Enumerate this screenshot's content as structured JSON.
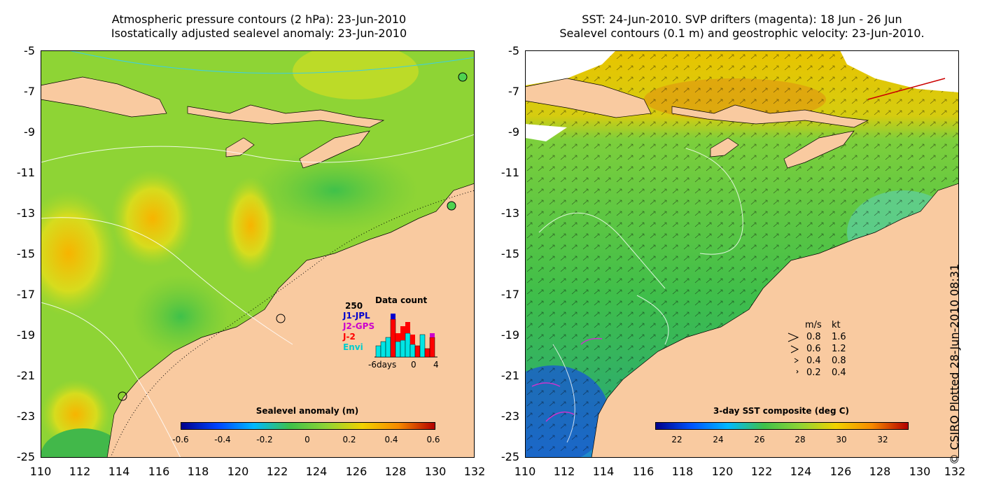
{
  "left_panel": {
    "title_line1": "Atmospheric pressure contours (2 hPa): 23-Jun-2010",
    "title_line2": "Isostatically adjusted sealevel anomaly: 23-Jun-2010",
    "colorbar": {
      "label": "Sealevel anomaly (m)",
      "ticks": [
        "-0.6",
        "-0.4",
        "-0.2",
        "0",
        "0.2",
        "0.4",
        "0.6"
      ]
    },
    "inset": {
      "title": "Data count",
      "max_label": "250",
      "series": [
        {
          "name": "J1-JPL",
          "color": "#0000cc"
        },
        {
          "name": "J2-GPS",
          "color": "#cc00cc"
        },
        {
          "name": "J-2",
          "color": "#ff0000"
        },
        {
          "name": "Envi",
          "color": "#00cccc"
        }
      ],
      "xlabels": [
        "-6days",
        "0",
        "4"
      ]
    }
  },
  "right_panel": {
    "title_line1": "SST: 24-Jun-2010. SVP drifters (magenta): 18 Jun - 26 Jun",
    "title_line2": "Sealevel contours (0.1 m) and geostrophic velocity: 23-Jun-2010.",
    "colorbar": {
      "label": "3-day SST composite (deg C)",
      "ticks": [
        "22",
        "24",
        "26",
        "28",
        "30",
        "32"
      ]
    },
    "velocity_legend": {
      "header_ms": "m/s",
      "header_kt": "kt",
      "rows": [
        {
          "ms": "0.8",
          "kt": "1.6"
        },
        {
          "ms": "0.6",
          "kt": "1.2"
        },
        {
          "ms": "0.4",
          "kt": "0.8"
        },
        {
          "ms": "0.2",
          "kt": "0.4"
        }
      ]
    }
  },
  "axes": {
    "y_ticks": [
      "-5",
      "-7",
      "-9",
      "-11",
      "-13",
      "-15",
      "-17",
      "-19",
      "-21",
      "-23",
      "-25"
    ],
    "x_ticks": [
      "110",
      "112",
      "114",
      "116",
      "118",
      "120",
      "122",
      "124",
      "126",
      "128",
      "130",
      "132"
    ]
  },
  "credit": "© CSIRO Plotted 28-Jun-2010 08:31",
  "colors": {
    "land": "#f9caa0",
    "sea_base_left": "#8ed435",
    "sea_base_right": "#3fbe4a"
  }
}
